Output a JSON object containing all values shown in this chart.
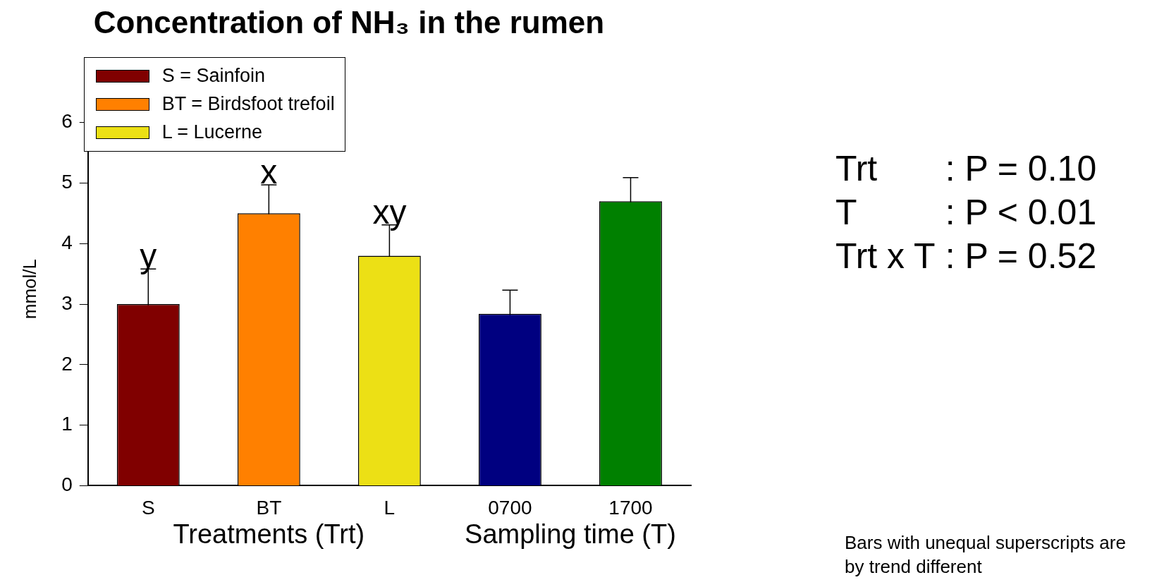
{
  "chart_data": {
    "type": "bar",
    "title": "Concentration of NH₃ in the rumen",
    "ylabel": "mmol/L",
    "categories": [
      "S",
      "BT",
      "L",
      "0700",
      "1700"
    ],
    "series": [
      {
        "name": "S = Sainfoin",
        "color": "#800000",
        "values": [
          3.0,
          null,
          null,
          null,
          null
        ],
        "errors": [
          0.58,
          null,
          null,
          null,
          null
        ],
        "value_labels": [
          "y",
          null,
          null,
          null,
          null
        ]
      },
      {
        "name": "BT = Birdsfoot trefoil",
        "color": "#ff8000",
        "values": [
          null,
          4.5,
          null,
          null,
          null
        ],
        "errors": [
          null,
          0.47,
          null,
          null,
          null
        ],
        "value_labels": [
          null,
          "x",
          null,
          null,
          null
        ]
      },
      {
        "name": "L = Lucerne",
        "color": "#ece015",
        "values": [
          null,
          null,
          3.8,
          null,
          null
        ],
        "errors": [
          null,
          null,
          0.51,
          null,
          null
        ],
        "value_labels": [
          null,
          null,
          "xy",
          null,
          null
        ]
      },
      {
        "colors": [
          null,
          null,
          null,
          "#000080",
          "#008000"
        ],
        "values": [
          null,
          null,
          null,
          2.84,
          4.7
        ],
        "errors": [
          null,
          null,
          null,
          0.39,
          0.39
        ]
      }
    ],
    "ylim": [
      0,
      6.5
    ],
    "yticks": [
      0,
      1,
      2,
      3,
      4,
      5,
      6
    ],
    "grid": false,
    "legend": "top left",
    "annotations": [
      "Treatments (Trt)",
      "Sampling time (T)",
      "Trt : P = 0.10",
      "T : P < 0.01",
      "Trt x T : P = 0.52",
      "Bars with unequal superscripts are by trend different"
    ]
  }
}
